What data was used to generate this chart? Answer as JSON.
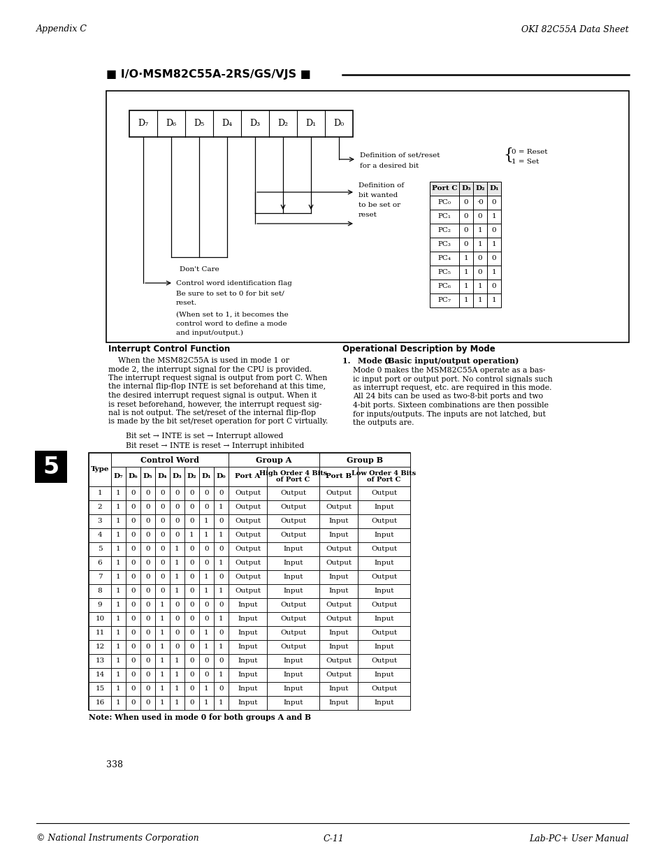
{
  "page_header_left": "Appendix C",
  "page_header_right": "OKI 82C55A Data Sheet",
  "section_title": "■ I/O·MSM82C55A-2RS/GS/VJS ■",
  "port_c_table": {
    "headers": [
      "Port C",
      "D₃",
      "D₂",
      "D₁"
    ],
    "rows": [
      [
        "PC₀",
        "0",
        "·0",
        "0"
      ],
      [
        "PC₁",
        "0",
        "0",
        "1"
      ],
      [
        "PC₂",
        "0",
        "1",
        "0"
      ],
      [
        "PC₃",
        "0",
        "1",
        "1"
      ],
      [
        "PC₄",
        "1",
        "0",
        "0"
      ],
      [
        "PC₅",
        "1",
        "0",
        "1"
      ],
      [
        "PC₆",
        "1",
        "1",
        "0"
      ],
      [
        "PC₇",
        "1",
        "1",
        "1"
      ]
    ]
  },
  "interrupt_title": "Interrupt Control Function",
  "interrupt_indent": "    When the MSM82C55A is used in mode 1 or",
  "interrupt_lines": [
    "    When the MSM82C55A is used in mode 1 or",
    "mode 2, the interrupt signal for the CPU is provided.",
    "The interrupt request signal is output from port C. When",
    "the internal flip-flop INTE is set beforehand at this time,",
    "the desired interrupt request signal is output. When it",
    "is reset beforehand, however, the interrupt request sig-",
    "nal is not output. The set/reset of the internal flip-flop",
    "is made by the bit set/reset operation for port C virtually."
  ],
  "bit_set_text": "Bit set → INTE is set → Interrupt allowed",
  "bit_reset_text": "Bit reset → INTE is reset → Interrupt inhibited",
  "operational_title": "Operational Description by Mode",
  "mode0_header": "1.  Mode 0 (Basic input/output operation)",
  "mode0_lines": [
    "Mode 0 makes the MSM82C55A operate as a bas-",
    "ic input port or output port. No control signals such",
    "as interrupt request, etc. are required in this mode.",
    "All 24 bits can be used as two-8-bit ports and two",
    "4-bit ports. Sixteen combinations are then possible",
    "for inputs/outputs. The inputs are not latched, but",
    "the outputs are."
  ],
  "main_table_rows": [
    [
      "1",
      "1",
      "0",
      "0",
      "0",
      "0",
      "0",
      "0",
      "0",
      "Output",
      "Output",
      "Output",
      "Output"
    ],
    [
      "2",
      "1",
      "0",
      "0",
      "0",
      "0",
      "0",
      "0",
      "1",
      "Output",
      "Output",
      "Output",
      "Input"
    ],
    [
      "3",
      "1",
      "0",
      "0",
      "0",
      "0",
      "0",
      "1",
      "0",
      "Output",
      "Output",
      "Input",
      "Output"
    ],
    [
      "4",
      "1",
      "0",
      "0",
      "0",
      "0",
      "1",
      "1",
      "1",
      "Output",
      "Output",
      "Input",
      "Input"
    ],
    [
      "5",
      "1",
      "0",
      "0",
      "0",
      "1",
      "0",
      "0",
      "0",
      "Output",
      "Input",
      "Output",
      "Output"
    ],
    [
      "6",
      "1",
      "0",
      "0",
      "0",
      "1",
      "0",
      "0",
      "1",
      "Output",
      "Input",
      "Output",
      "Input"
    ],
    [
      "7",
      "1",
      "0",
      "0",
      "0",
      "1",
      "0",
      "1",
      "0",
      "Output",
      "Input",
      "Input",
      "Output"
    ],
    [
      "8",
      "1",
      "0",
      "0",
      "0",
      "1",
      "0",
      "1",
      "1",
      "Output",
      "Input",
      "Input",
      "Input"
    ],
    [
      "9",
      "1",
      "0",
      "0",
      "1",
      "0",
      "0",
      "0",
      "0",
      "Input",
      "Output",
      "Output",
      "Output"
    ],
    [
      "10",
      "1",
      "0",
      "0",
      "1",
      "0",
      "0",
      "0",
      "1",
      "Input",
      "Output",
      "Output",
      "Input"
    ],
    [
      "11",
      "1",
      "0",
      "0",
      "1",
      "0",
      "0",
      "1",
      "0",
      "Input",
      "Output",
      "Input",
      "Output"
    ],
    [
      "12",
      "1",
      "0",
      "0",
      "1",
      "0",
      "0",
      "1",
      "1",
      "Input",
      "Output",
      "Input",
      "Input"
    ],
    [
      "13",
      "1",
      "0",
      "0",
      "1",
      "1",
      "0",
      "0",
      "0",
      "Input",
      "Input",
      "Output",
      "Output"
    ],
    [
      "14",
      "1",
      "0",
      "0",
      "1",
      "1",
      "0",
      "0",
      "1",
      "Input",
      "Input",
      "Output",
      "Input"
    ],
    [
      "15",
      "1",
      "0",
      "0",
      "1",
      "1",
      "0",
      "1",
      "0",
      "Input",
      "Input",
      "Input",
      "Output"
    ],
    [
      "16",
      "1",
      "0",
      "0",
      "1",
      "1",
      "0",
      "1",
      "1",
      "Input",
      "Input",
      "Input",
      "Input"
    ]
  ],
  "note_text": "Note: When used in mode 0 for both groups A and B",
  "page_number": "338",
  "page_footer_left": "© National Instruments Corporation",
  "page_footer_center": "C-11",
  "page_footer_right": "Lab-PC+ User Manual",
  "chapter_num": "5"
}
